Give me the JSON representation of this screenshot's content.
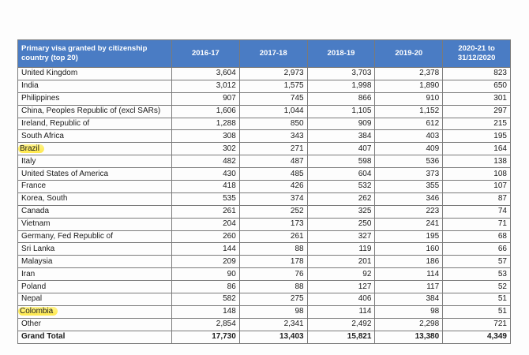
{
  "table": {
    "headers": [
      "Primary visa granted by citizenship country (top 20)",
      "2016-17",
      "2017-18",
      "2018-19",
      "2019-20",
      "2020-21 to 31/12/2020"
    ],
    "rows": [
      {
        "country": "United Kingdom",
        "values": [
          "3,604",
          "2,973",
          "3,703",
          "2,378",
          "823"
        ]
      },
      {
        "country": "India",
        "values": [
          "3,012",
          "1,575",
          "1,998",
          "1,890",
          "650"
        ]
      },
      {
        "country": "Philippines",
        "values": [
          "907",
          "745",
          "866",
          "910",
          "301"
        ]
      },
      {
        "country": "China, Peoples Republic of (excl SARs)",
        "values": [
          "1,606",
          "1,044",
          "1,105",
          "1,152",
          "297"
        ]
      },
      {
        "country": "Ireland, Republic of",
        "values": [
          "1,288",
          "850",
          "909",
          "612",
          "215"
        ]
      },
      {
        "country": "South Africa",
        "values": [
          "308",
          "343",
          "384",
          "403",
          "195"
        ]
      },
      {
        "country": "Brazil",
        "values": [
          "302",
          "271",
          "407",
          "409",
          "164"
        ],
        "highlighted": true
      },
      {
        "country": "Italy",
        "values": [
          "482",
          "487",
          "598",
          "536",
          "138"
        ]
      },
      {
        "country": "United States of America",
        "values": [
          "430",
          "485",
          "604",
          "373",
          "108"
        ]
      },
      {
        "country": "France",
        "values": [
          "418",
          "426",
          "532",
          "355",
          "107"
        ]
      },
      {
        "country": "Korea, South",
        "values": [
          "535",
          "374",
          "262",
          "346",
          "87"
        ]
      },
      {
        "country": "Canada",
        "values": [
          "261",
          "252",
          "325",
          "223",
          "74"
        ]
      },
      {
        "country": "Vietnam",
        "values": [
          "204",
          "173",
          "250",
          "241",
          "71"
        ]
      },
      {
        "country": "Germany, Fed Republic of",
        "values": [
          "260",
          "261",
          "327",
          "195",
          "68"
        ]
      },
      {
        "country": "Sri Lanka",
        "values": [
          "144",
          "88",
          "119",
          "160",
          "66"
        ]
      },
      {
        "country": "Malaysia",
        "values": [
          "209",
          "178",
          "201",
          "186",
          "57"
        ]
      },
      {
        "country": "Iran",
        "values": [
          "90",
          "76",
          "92",
          "114",
          "53"
        ]
      },
      {
        "country": "Poland",
        "values": [
          "86",
          "88",
          "127",
          "117",
          "52"
        ]
      },
      {
        "country": "Nepal",
        "values": [
          "582",
          "275",
          "406",
          "384",
          "51"
        ]
      },
      {
        "country": "Colombia",
        "values": [
          "148",
          "98",
          "114",
          "98",
          "51"
        ],
        "highlighted": true
      },
      {
        "country": "Other",
        "values": [
          "2,854",
          "2,341",
          "2,492",
          "2,298",
          "721"
        ]
      }
    ],
    "total": {
      "country": "Grand Total",
      "values": [
        "17,730",
        "13,403",
        "15,821",
        "13,380",
        "4,349"
      ]
    },
    "colors": {
      "header_bg": "#4a7cc4",
      "highlight": "#ffe94a"
    }
  }
}
